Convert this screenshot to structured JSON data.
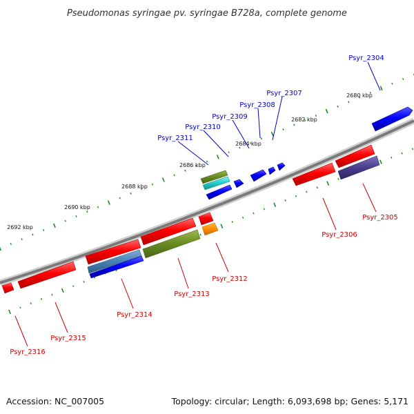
{
  "title": "Pseudomonas syringae pv. syringae B728a, complete genome",
  "kbp_labels": [
    "2680 kbp",
    "2682 kbp",
    "2684 kbp",
    "2686 kbp",
    "2688 kbp",
    "2690 kbp",
    "2692 kbp"
  ],
  "colors": {
    "backbone": "#8a8a8a",
    "ruler_ticks": "#1e8b1e",
    "forward_label": "#0000cc",
    "reverse_label": "#cc0000"
  },
  "forward_genes": [
    {
      "name": "Psyr_2304",
      "color": "#0000ff"
    },
    {
      "name": "Psyr_2307",
      "color": "#0000ff"
    },
    {
      "name": "Psyr_2308",
      "color": "#0000ff"
    },
    {
      "name": "Psyr_2309",
      "color": "#0000ff"
    },
    {
      "name": "Psyr_2310",
      "color": "#0000ff"
    },
    {
      "name": "Psyr_2311",
      "color": "#6b8e23"
    }
  ],
  "reverse_genes": [
    {
      "name": "Psyr_2305",
      "color": "#483d8b"
    },
    {
      "name": "Psyr_2306",
      "color": "#ff0000"
    },
    {
      "name": "Psyr_2312",
      "color": "#ff8c00"
    },
    {
      "name": "Psyr_2313",
      "color": "#6b8e23"
    },
    {
      "name": "Psyr_2314",
      "color": "#0000ff"
    },
    {
      "name": "Psyr_2315",
      "color": "#ff0000"
    },
    {
      "name": "Psyr_2316",
      "color": "#ff0000"
    }
  ],
  "footer": {
    "accession": "Accession: NC_007005",
    "summary": "Topology: circular; Length: 6,093,698 bp; Genes: 5,171"
  }
}
